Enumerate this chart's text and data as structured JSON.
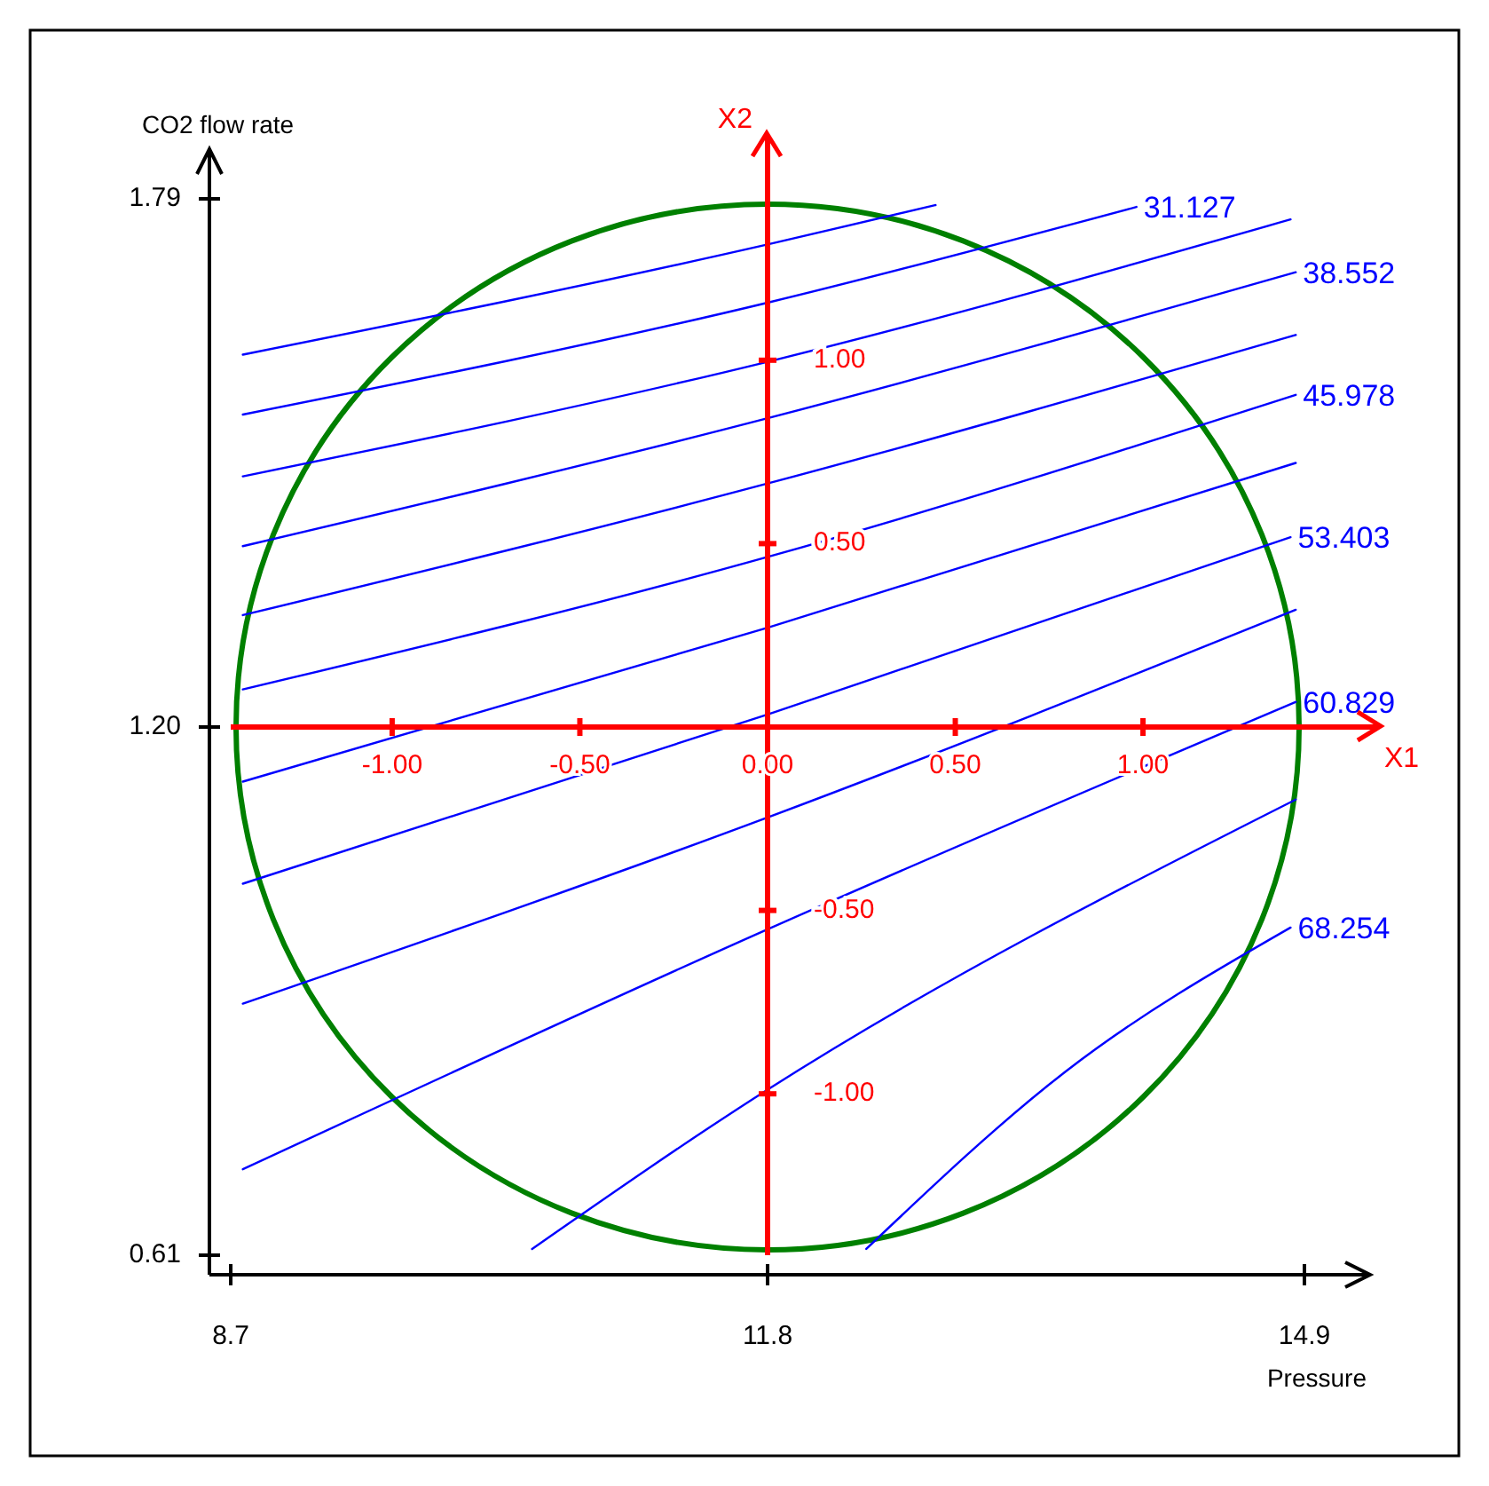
{
  "chart_data": {
    "type": "line",
    "xlabel": "Pressure",
    "ylabel": "CO2 flow rate",
    "x2label": "X1",
    "y2label": "X2",
    "xlim": [
      8.7,
      14.9
    ],
    "xticks": [
      8.7,
      11.8,
      14.9
    ],
    "ylim": [
      0.61,
      1.79
    ],
    "yticks": [
      0.61,
      {
        "value": 1.2,
        "label": "1.20"
      },
      1.79
    ],
    "x2lim": [
      -1.43,
      1.43
    ],
    "x2ticks": [
      {
        "value": -1,
        "label": "-1.00"
      },
      {
        "value": -0.5,
        "label": "-0.50"
      },
      {
        "value": 0,
        "label": "0.00"
      },
      {
        "value": 0.5,
        "label": "0.50"
      },
      {
        "value": 1,
        "label": "1.00"
      }
    ],
    "y2lim": [
      -1.44,
      1.44
    ],
    "y2ticks": [
      {
        "value": 1,
        "label": "1.00"
      },
      {
        "value": 0.5,
        "label": "0.50"
      },
      {
        "value": -0.5,
        "label": "-0.50"
      },
      {
        "value": -1,
        "label": "-1.00"
      }
    ],
    "grid": false,
    "marker": "none",
    "line_style": "solid",
    "series": [
      {
        "color": "#0000ff",
        "x": [
          8.77,
          11.8,
          12.77
        ],
        "values": [
          1.616,
          1.739,
          1.783
        ]
      },
      {
        "name": "31.127",
        "color": "#0000ff",
        "x": [
          8.77,
          11.8,
          13.93
        ],
        "values": [
          1.549,
          1.674,
          1.781
        ]
      },
      {
        "color": "#0000ff",
        "x": [
          8.77,
          11.8,
          14.82
        ],
        "values": [
          1.48,
          1.608,
          1.767
        ]
      },
      {
        "name": "38.552",
        "color": "#0000ff",
        "x": [
          8.77,
          11.8,
          14.85
        ],
        "values": [
          1.402,
          1.545,
          1.708
        ]
      },
      {
        "color": "#0000ff",
        "x": [
          8.77,
          11.8,
          14.85
        ],
        "values": [
          1.325,
          1.472,
          1.638
        ]
      },
      {
        "name": "45.978",
        "color": "#0000ff",
        "x": [
          8.77,
          11.8,
          14.85
        ],
        "values": [
          1.242,
          1.39,
          1.571
        ]
      },
      {
        "color": "#0000ff",
        "x": [
          8.77,
          11.8,
          14.85
        ],
        "values": [
          1.139,
          1.311,
          1.495
        ]
      },
      {
        "name": "53.403",
        "color": "#0000ff",
        "x": [
          8.77,
          11.8,
          14.82
        ],
        "values": [
          1.025,
          1.214,
          1.412
        ]
      },
      {
        "color": "#0000ff",
        "x": [
          8.77,
          11.8,
          14.85
        ],
        "values": [
          0.891,
          1.099,
          1.331
        ]
      },
      {
        "name": "60.829",
        "color": "#0000ff",
        "x": [
          8.77,
          11.8,
          14.85
        ],
        "values": [
          0.706,
          0.974,
          1.228
        ]
      },
      {
        "color": "#0000ff",
        "x": [
          10.44,
          11.8,
          14.85
        ],
        "values": [
          0.617,
          0.795,
          1.119
        ]
      },
      {
        "name": "68.254",
        "color": "#0000ff",
        "x": [
          12.37,
          13.52,
          14.82
        ],
        "values": [
          0.617,
          0.815,
          0.976
        ]
      }
    ]
  }
}
